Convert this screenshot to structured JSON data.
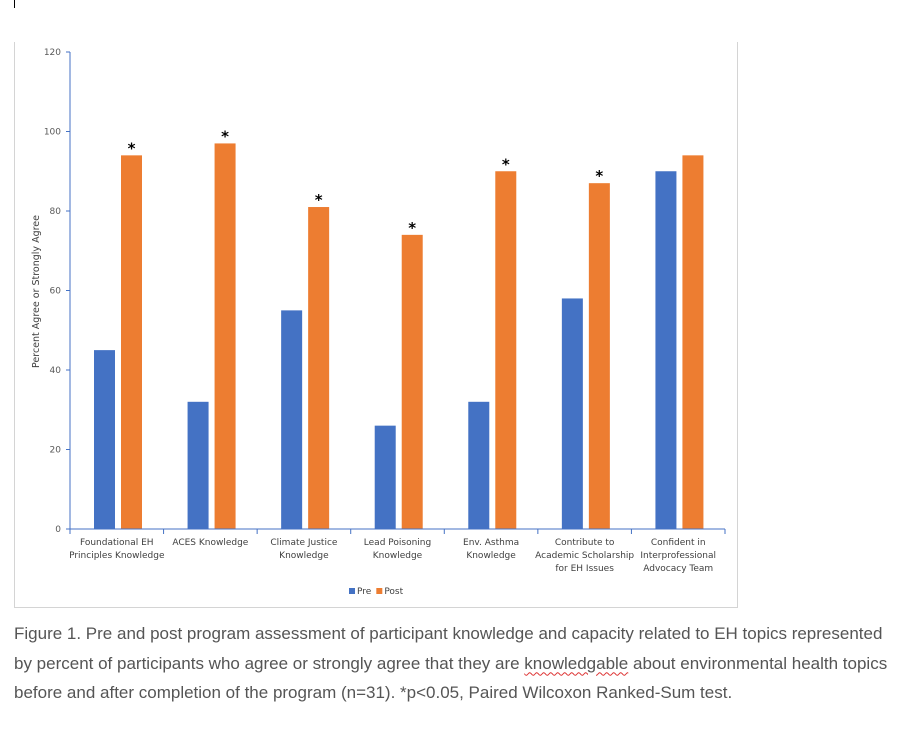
{
  "chart_data": {
    "type": "bar",
    "title": "",
    "xlabel": "",
    "ylabel": "Percent Agree or Strongly Agree",
    "ylim": [
      0,
      120
    ],
    "yticks": [
      0,
      20,
      40,
      60,
      80,
      100,
      120
    ],
    "grid": false,
    "legend_position": "bottom",
    "categories": [
      [
        "Foundational EH",
        "Principles Knowledge"
      ],
      [
        "ACES Knowledge"
      ],
      [
        "Climate Justice",
        "Knowledge"
      ],
      [
        "Lead Poisoning",
        "Knowledge"
      ],
      [
        "Env. Asthma",
        "Knowledge"
      ],
      [
        "Contribute to",
        "Academic Scholarship",
        "for EH Issues"
      ],
      [
        "Confident in",
        "Interprofessional",
        "Advocacy Team"
      ]
    ],
    "series": [
      {
        "name": "Pre",
        "color": "#4472C4",
        "values": [
          45,
          32,
          55,
          26,
          32,
          58,
          90
        ]
      },
      {
        "name": "Post",
        "color": "#ED7D31",
        "values": [
          94,
          97,
          81,
          74,
          90,
          87,
          94
        ]
      }
    ],
    "significance_marker": "*",
    "significant": [
      true,
      true,
      true,
      true,
      true,
      true,
      false
    ]
  },
  "caption": {
    "before": "Figure 1. Pre and post program assessment of participant knowledge and capacity related to EH topics represented by percent of participants who agree or strongly agree that they are ",
    "misspelled_word": "knowledgable",
    "after": " about environmental health topics before and after completion of the program (n=31). *p<0.05, Paired Wilcoxon Ranked-Sum test."
  }
}
